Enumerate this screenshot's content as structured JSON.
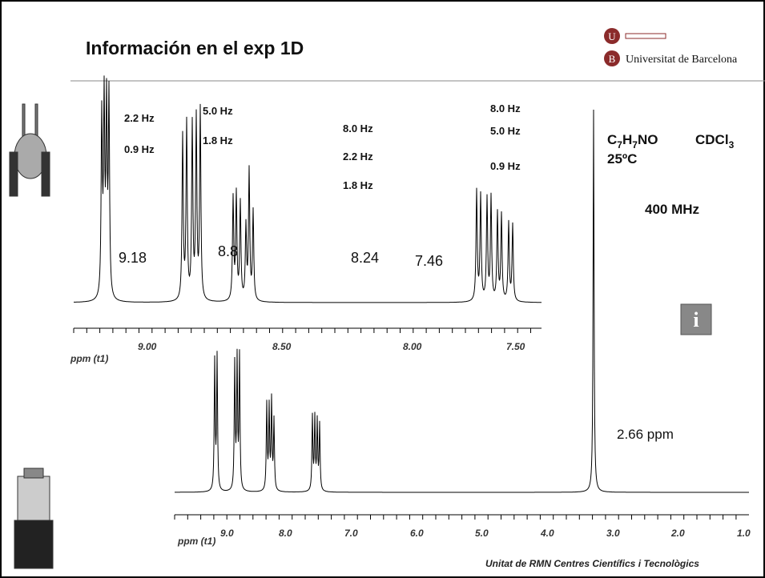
{
  "header": {
    "title": "Información en el exp 1D",
    "logo_letters": [
      "U",
      "B"
    ],
    "logo_text": "Universitat de Barcelona"
  },
  "inset": {
    "shifts": [
      "9.18",
      "8.8",
      "8.24",
      "7.46"
    ],
    "couplings": [
      [
        "2.2 Hz",
        "0.9 Hz"
      ],
      [
        "5.0 Hz",
        "1.8 Hz"
      ],
      [
        "8.0 Hz",
        "2.2 Hz",
        "1.8 Hz"
      ],
      [
        "8.0 Hz",
        "5.0 Hz",
        "0.9 Hz"
      ]
    ],
    "axis_labels": [
      "9.00",
      "8.50",
      "8.00",
      "7.50"
    ],
    "axis_title": "ppm (t1)"
  },
  "sample": {
    "formula": [
      "C",
      "7",
      "H",
      "7",
      "NO"
    ],
    "solvent": [
      "CDCl",
      "3"
    ],
    "temperature": "25ºC",
    "frequency": "400 MHz"
  },
  "main": {
    "peak_label": "2.66 ppm",
    "axis_labels": [
      "9.0",
      "8.0",
      "7.0",
      "6.0",
      "5.0",
      "4.0",
      "3.0",
      "2.0",
      "1.0"
    ],
    "axis_title": "ppm (t1)"
  },
  "footer": "Unitat de RMN  Centres Científics i Tecnològics"
}
